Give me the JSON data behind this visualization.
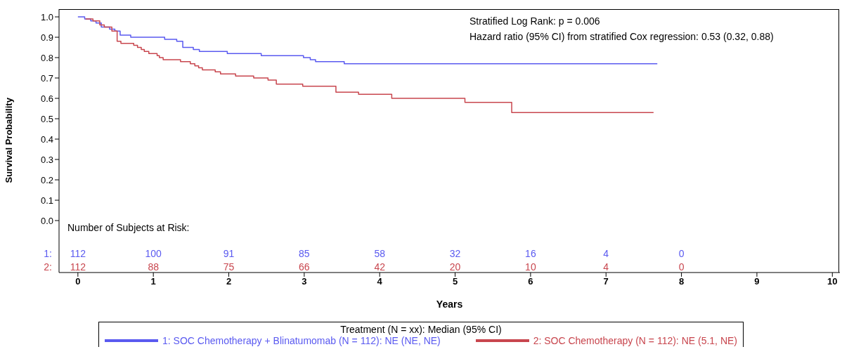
{
  "chart_data": {
    "type": "step",
    "xlabel": "Years",
    "ylabel": "Survival Probability",
    "legend_title": "Treatment (N = xx): Median (95% CI)",
    "legend": "bottom",
    "line_style": "solid",
    "marker": "none",
    "xlim": [
      -0.25,
      10.1
    ],
    "xticks": [
      0,
      1,
      2,
      3,
      4,
      5,
      6,
      7,
      8,
      9,
      10
    ],
    "ylim": [
      -0.255,
      1.038
    ],
    "yticks": [
      {
        "value": 0,
        "label": "0.0"
      },
      0.1,
      0.2,
      0.3,
      0.4,
      0.5,
      0.6,
      0.7,
      0.8,
      0.9,
      {
        "value": 1,
        "label": "1.0"
      }
    ],
    "series": [
      {
        "name": "1: SOC Chemotherapy + Blinatumomab (N = 112): NE (NE, NE)",
        "color": "#5a5af0",
        "x": [
          0,
          0.09,
          0.17,
          0.24,
          0.31,
          0.42,
          0.49,
          0.56,
          0.7,
          1.15,
          1.31,
          1.39,
          1.53,
          1.61,
          1.98,
          2.43,
          2.99,
          3.08,
          3.15,
          3.53,
          7.68
        ],
        "values": [
          1,
          0.99,
          0.98,
          0.97,
          0.95,
          0.94,
          0.93,
          0.91,
          0.9,
          0.89,
          0.88,
          0.85,
          0.84,
          0.83,
          0.82,
          0.81,
          0.8,
          0.79,
          0.78,
          0.77,
          0.77
        ]
      },
      {
        "name": "2: SOC Chemotherapy (N = 112): NE (5.1, NE)",
        "color": "#c8464e",
        "x": [
          0.1,
          0.2,
          0.29,
          0.35,
          0.45,
          0.52,
          0.57,
          0.74,
          0.79,
          0.84,
          0.88,
          0.94,
          1.05,
          1.08,
          1.13,
          1.36,
          1.49,
          1.55,
          1.6,
          1.65,
          1.82,
          1.89,
          2.09,
          2.33,
          2.52,
          2.63,
          2.98,
          3.42,
          3.72,
          4.16,
          5.13,
          5.75,
          7.63
        ],
        "values": [
          0.99,
          0.98,
          0.96,
          0.95,
          0.93,
          0.88,
          0.87,
          0.86,
          0.85,
          0.84,
          0.83,
          0.82,
          0.81,
          0.8,
          0.79,
          0.78,
          0.77,
          0.76,
          0.75,
          0.74,
          0.73,
          0.72,
          0.71,
          0.7,
          0.69,
          0.67,
          0.66,
          0.63,
          0.62,
          0.6,
          0.58,
          0.53,
          0.53
        ]
      }
    ],
    "annotations": [
      "Stratified Log Rank: p = 0.006",
      "Hazard ratio (95% CI) from stratified Cox regression: 0.53 (0.32, 0.88)",
      "Number of Subjects at Risk:",
      "1:",
      "2:",
      "112",
      "100",
      "91",
      "85",
      "58",
      "32",
      "16",
      "4",
      "0",
      "112",
      "88",
      "75",
      "66",
      "42",
      "20",
      "10",
      "4",
      "0"
    ]
  }
}
